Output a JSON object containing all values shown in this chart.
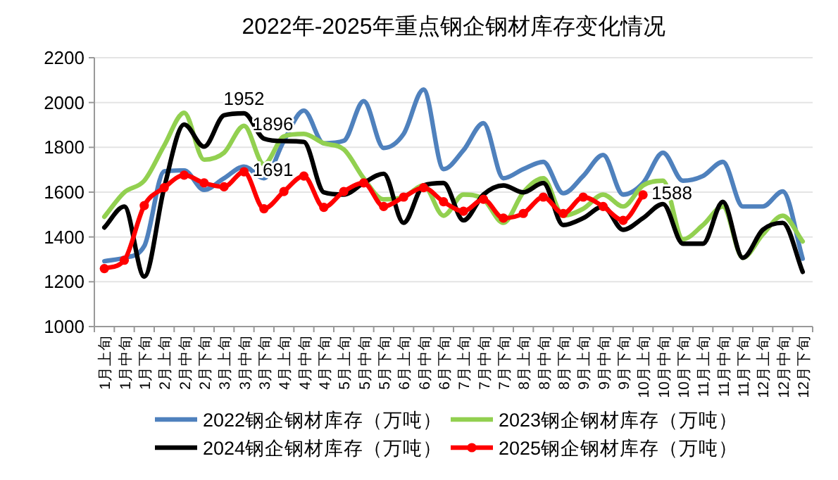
{
  "chart_data": {
    "type": "line",
    "title": "2022年-2025年重点钢企钢材库存变化情况",
    "categories": [
      "1月上旬",
      "1月中旬",
      "1月下旬",
      "2月上旬",
      "2月中旬",
      "2月下旬",
      "3月上旬",
      "3月中旬",
      "3月下旬",
      "4月上旬",
      "4月中旬",
      "4月下旬",
      "5月上旬",
      "5月中旬",
      "5月下旬",
      "6月上旬",
      "6月中旬",
      "6月下旬",
      "7月上旬",
      "7月中旬",
      "7月下旬",
      "8月上旬",
      "8月中旬",
      "8月下旬",
      "9月上旬",
      "9月中旬",
      "9月下旬",
      "10月上旬",
      "10月中旬",
      "10月下旬",
      "11月上旬",
      "11月中旬",
      "11月下旬",
      "12月上旬",
      "12月中旬",
      "12月下旬"
    ],
    "series": [
      {
        "name": "2022钢企钢材库存（万吨）",
        "color": "#4f81bd",
        "marker": "none",
        "values": [
          1292,
          1307,
          1359,
          1693,
          1697,
          1610,
          1662,
          1714,
          1662,
          1829,
          1964,
          1818,
          1829,
          2006,
          1797,
          1860,
          2058,
          1703,
          1787,
          1908,
          1662,
          1703,
          1735,
          1595,
          1672,
          1766,
          1589,
          1641,
          1776,
          1651,
          1672,
          1735,
          1536,
          1536,
          1603,
          1303
        ]
      },
      {
        "name": "2023钢企钢材库存（万吨）",
        "color": "#92d050",
        "marker": "none",
        "values": [
          1490,
          1599,
          1651,
          1808,
          1954,
          1745,
          1776,
          1896,
          1724,
          1849,
          1860,
          1818,
          1791,
          1662,
          1568,
          1578,
          1630,
          1495,
          1589,
          1568,
          1463,
          1599,
          1662,
          1495,
          1526,
          1589,
          1536,
          1630,
          1651,
          1390,
          1453,
          1536,
          1307,
          1411,
          1495,
          1380
        ],
        "value_labels": [
          null,
          null,
          null,
          null,
          null,
          null,
          null,
          "1896",
          null,
          null,
          null,
          null,
          null,
          null,
          null,
          null,
          null,
          null,
          null,
          null,
          null,
          null,
          null,
          null,
          null,
          null,
          null,
          null,
          null,
          null,
          null,
          null,
          null,
          null,
          null,
          null
        ]
      },
      {
        "name": "2024钢企钢材库存（万吨）",
        "color": "#000000",
        "marker": "none",
        "values": [
          1442,
          1536,
          1223,
          1620,
          1902,
          1803,
          1943,
          1952,
          1839,
          1828,
          1824,
          1599,
          1589,
          1641,
          1682,
          1463,
          1630,
          1641,
          1474,
          1589,
          1630,
          1599,
          1641,
          1453,
          1484,
          1536,
          1432,
          1484,
          1547,
          1370,
          1370,
          1557,
          1307,
          1432,
          1463,
          1244
        ],
        "value_labels": [
          null,
          null,
          null,
          null,
          null,
          null,
          null,
          "1952",
          null,
          null,
          null,
          null,
          null,
          null,
          null,
          null,
          null,
          null,
          null,
          null,
          null,
          null,
          null,
          null,
          null,
          null,
          null,
          null,
          null,
          null,
          null,
          null,
          null,
          null,
          null,
          null
        ]
      },
      {
        "name": "2025钢企钢材库存（万吨）",
        "color": "#ff0000",
        "marker": "circle",
        "values": [
          1259,
          1296,
          1540,
          1620,
          1676,
          1641,
          1624,
          1691,
          1526,
          1603,
          1672,
          1532,
          1603,
          1641,
          1536,
          1578,
          1620,
          1557,
          1515,
          1568,
          1484,
          1505,
          1578,
          1505,
          1578,
          1536,
          1474,
          1588,
          null,
          null,
          null,
          null,
          null,
          null,
          null,
          null
        ],
        "value_labels": [
          null,
          null,
          null,
          null,
          null,
          null,
          null,
          "1691",
          null,
          null,
          null,
          null,
          null,
          null,
          null,
          null,
          null,
          null,
          null,
          null,
          null,
          null,
          null,
          null,
          null,
          null,
          null,
          "1588",
          null,
          null,
          null,
          null,
          null,
          null,
          null,
          null
        ]
      }
    ],
    "ylim": [
      1000,
      2200
    ],
    "yticks": [
      1000,
      1200,
      1400,
      1600,
      1800,
      2000,
      2200
    ],
    "grid": "y",
    "legend": "bottom",
    "line_style": "solid"
  }
}
